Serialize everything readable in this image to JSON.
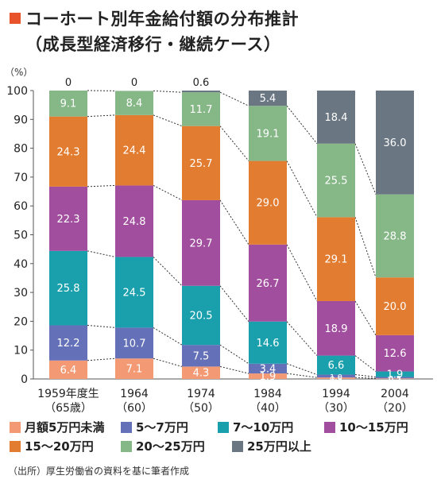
{
  "header": {
    "title": "コーホート別年金給付額の分布推計",
    "subtitle": "（成長型経済移行・継続ケース）"
  },
  "source": "（出所）厚生労働省の資料を基に筆者作成",
  "colors": {
    "title_marker": "#e8532b",
    "series": [
      "#f39a75",
      "#6471b8",
      "#1aa0ad",
      "#a24e9e",
      "#e27c30",
      "#86b787",
      "#6a7682"
    ]
  },
  "chart_data": {
    "type": "bar",
    "stacked": true,
    "unit_label": "（%）",
    "ylim": [
      0,
      100
    ],
    "yticks": [
      "0",
      "10",
      "20",
      "30",
      "40",
      "50",
      "60",
      "70",
      "80",
      "90",
      "100"
    ],
    "categories": [
      "1959年度生",
      "1964",
      "1974",
      "1984",
      "1994",
      "2004"
    ],
    "category_sublabels": [
      "（65歳）",
      "（60）",
      "（50）",
      "（40）",
      "（30）",
      "（20）"
    ],
    "series": [
      {
        "name": "月額5万円未満",
        "values": [
          6.4,
          7.1,
          4.3,
          1.9,
          0.5,
          0.2
        ],
        "labels": [
          "6.4",
          "7.1",
          "4.3",
          "1.9",
          "0.5",
          "0.2"
        ]
      },
      {
        "name": "5～7万円",
        "values": [
          12.2,
          10.7,
          7.5,
          3.4,
          1.0,
          0.5
        ],
        "labels": [
          "12.2",
          "10.7",
          "7.5",
          "3.4",
          "1.0",
          "0.5"
        ]
      },
      {
        "name": "7～10万円",
        "values": [
          25.8,
          24.5,
          20.5,
          14.6,
          6.6,
          1.9
        ],
        "labels": [
          "25.8",
          "24.5",
          "20.5",
          "14.6",
          "6.6",
          "1.9"
        ]
      },
      {
        "name": "10～15万円",
        "values": [
          22.3,
          24.8,
          29.7,
          26.7,
          18.9,
          12.6
        ],
        "labels": [
          "22.3",
          "24.8",
          "29.7",
          "26.7",
          "18.9",
          "12.6"
        ]
      },
      {
        "name": "15～20万円",
        "values": [
          24.3,
          24.4,
          25.7,
          29.0,
          29.1,
          20.0
        ],
        "labels": [
          "24.3",
          "24.4",
          "25.7",
          "29.0",
          "29.1",
          "20.0"
        ]
      },
      {
        "name": "20～25万円",
        "values": [
          9.1,
          8.4,
          11.7,
          19.1,
          25.5,
          28.8
        ],
        "labels": [
          "9.1",
          "8.4",
          "11.7",
          "19.1",
          "25.5",
          "28.8"
        ]
      },
      {
        "name": "25万円以上",
        "values": [
          0,
          0,
          0.6,
          5.4,
          18.4,
          36.0
        ],
        "labels": [
          "0",
          "0",
          "0.6",
          "5.4",
          "18.4",
          "36.0"
        ]
      }
    ],
    "grid": false,
    "connector_lines": "dotted",
    "legend_position": "bottom"
  }
}
